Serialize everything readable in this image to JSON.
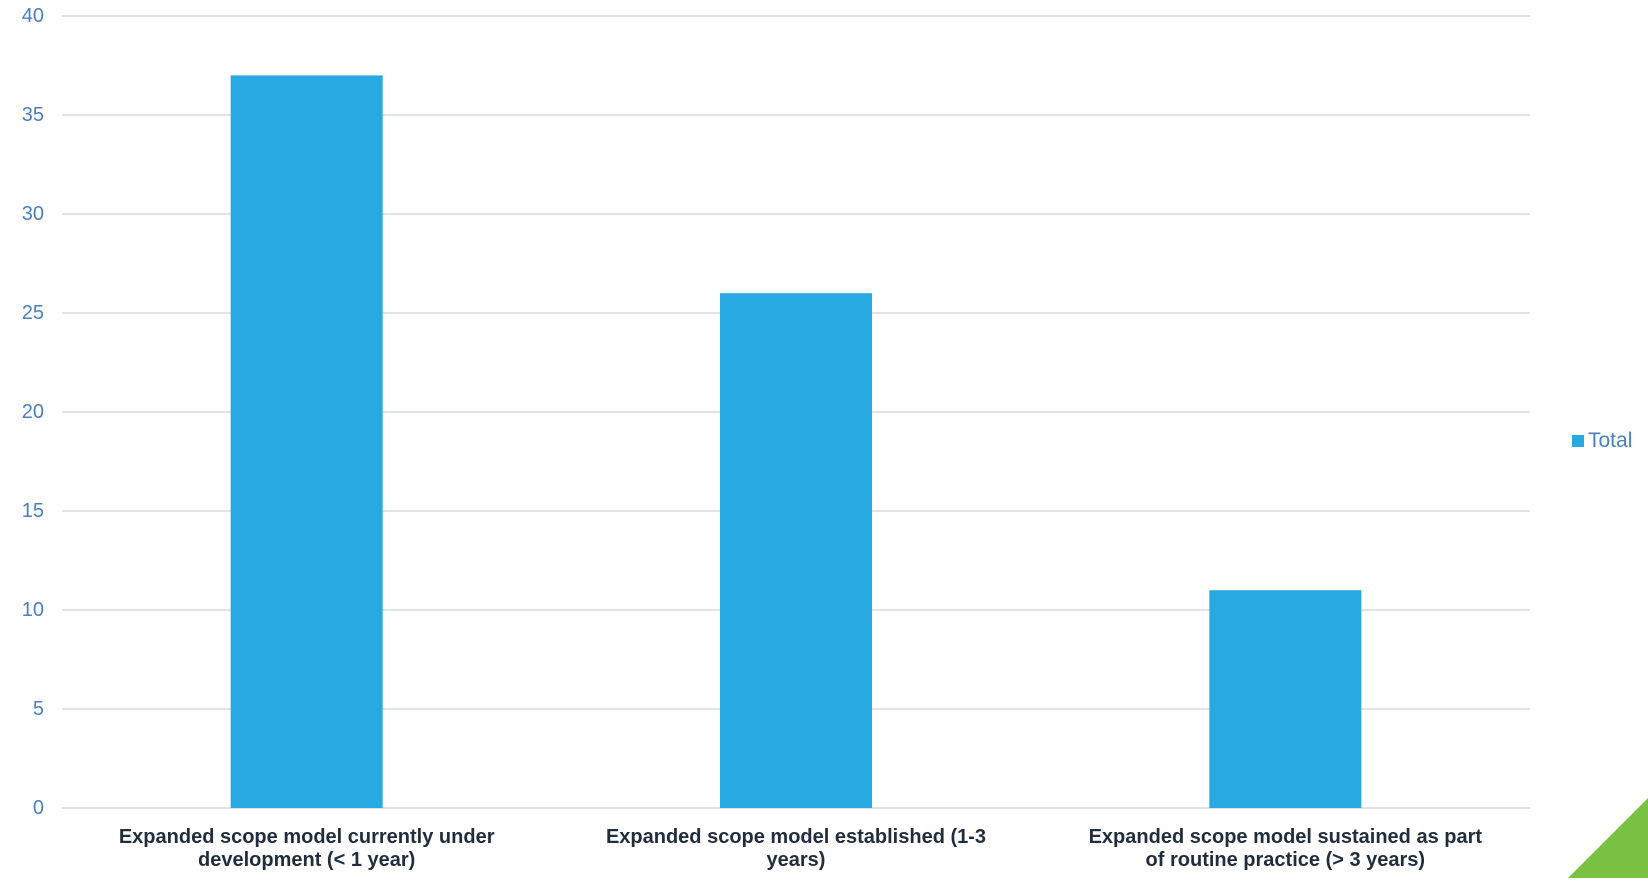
{
  "chart_data": {
    "type": "bar",
    "categories": [
      "Expanded scope model currently under development (< 1 year)",
      "Expanded scope model established (1-3 years)",
      "Expanded scope model sustained as part of routine practice (> 3 years)"
    ],
    "category_lines": [
      [
        "Expanded scope model currently under",
        "development (< 1 year)"
      ],
      [
        "Expanded scope model established (1-3",
        "years)"
      ],
      [
        "Expanded scope model sustained as part",
        "of routine practice (> 3 years)"
      ]
    ],
    "series": [
      {
        "name": "Total",
        "values": [
          37,
          26,
          11
        ]
      }
    ],
    "ylim": [
      0,
      40
    ],
    "yticks": [
      "0",
      "5",
      "10",
      "15",
      "20",
      "25",
      "30",
      "35",
      "40"
    ],
    "grid": true,
    "legend_position": "right",
    "colors": {
      "bar": "#29a9e1",
      "grid": "#d6dce4",
      "tick": "#4a7fbf",
      "category_text": "#1f2d3d",
      "corner_accent": "#7ac143"
    }
  }
}
